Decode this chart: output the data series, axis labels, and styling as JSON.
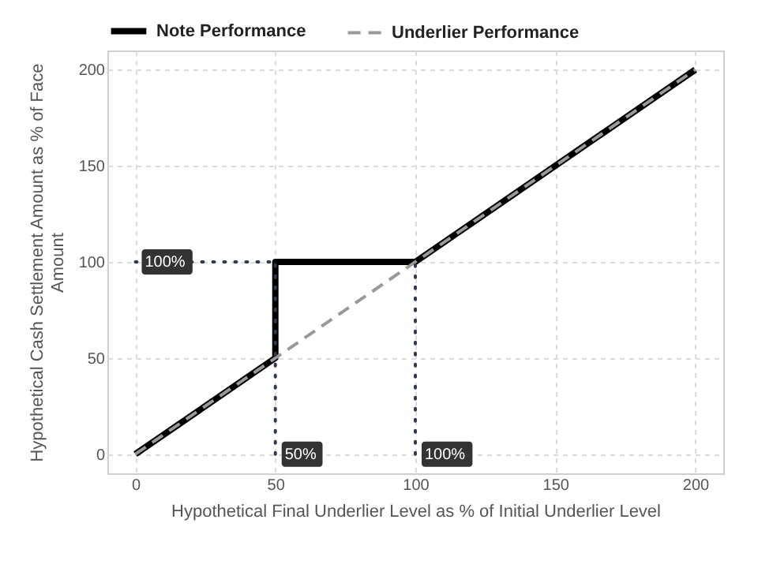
{
  "chart_data": {
    "type": "line",
    "xlabel": "Hypothetical Final Underlier Level as % of Initial Underlier Level",
    "ylabel": "Hypothetical Cash Settlement Amount as % of Face Amount",
    "xlim": [
      -10,
      210
    ],
    "ylim": [
      -10,
      210
    ],
    "xticks": [
      0,
      50,
      100,
      150,
      200
    ],
    "yticks": [
      0,
      50,
      100,
      150,
      200
    ],
    "grid": true,
    "legend": "top",
    "series": [
      {
        "name": "Note Performance",
        "color": "#000000",
        "line_style": "solid",
        "x": [
          0,
          50,
          50,
          100,
          200
        ],
        "values": [
          0,
          50,
          100,
          100,
          200
        ]
      },
      {
        "name": "Underlier Performance",
        "color": "#999999",
        "line_style": "dashed",
        "x": [
          0,
          200
        ],
        "values": [
          0,
          200
        ]
      },
      {
        "color": "#2f3a4f",
        "line_style": "dotted",
        "x": [
          0,
          50
        ],
        "values": [
          100,
          100
        ]
      },
      {
        "color": "#2f3a4f",
        "line_style": "dotted",
        "x": [
          50,
          50
        ],
        "values": [
          0,
          100
        ]
      },
      {
        "color": "#2f3a4f",
        "line_style": "dotted",
        "x": [
          100,
          100
        ],
        "values": [
          0,
          100
        ]
      }
    ],
    "annotations": [
      {
        "text": "100%",
        "x": 0,
        "y": 100
      },
      {
        "text": "50%",
        "x": 50,
        "y": 0
      },
      {
        "text": "100%",
        "x": 100,
        "y": 0
      }
    ]
  }
}
